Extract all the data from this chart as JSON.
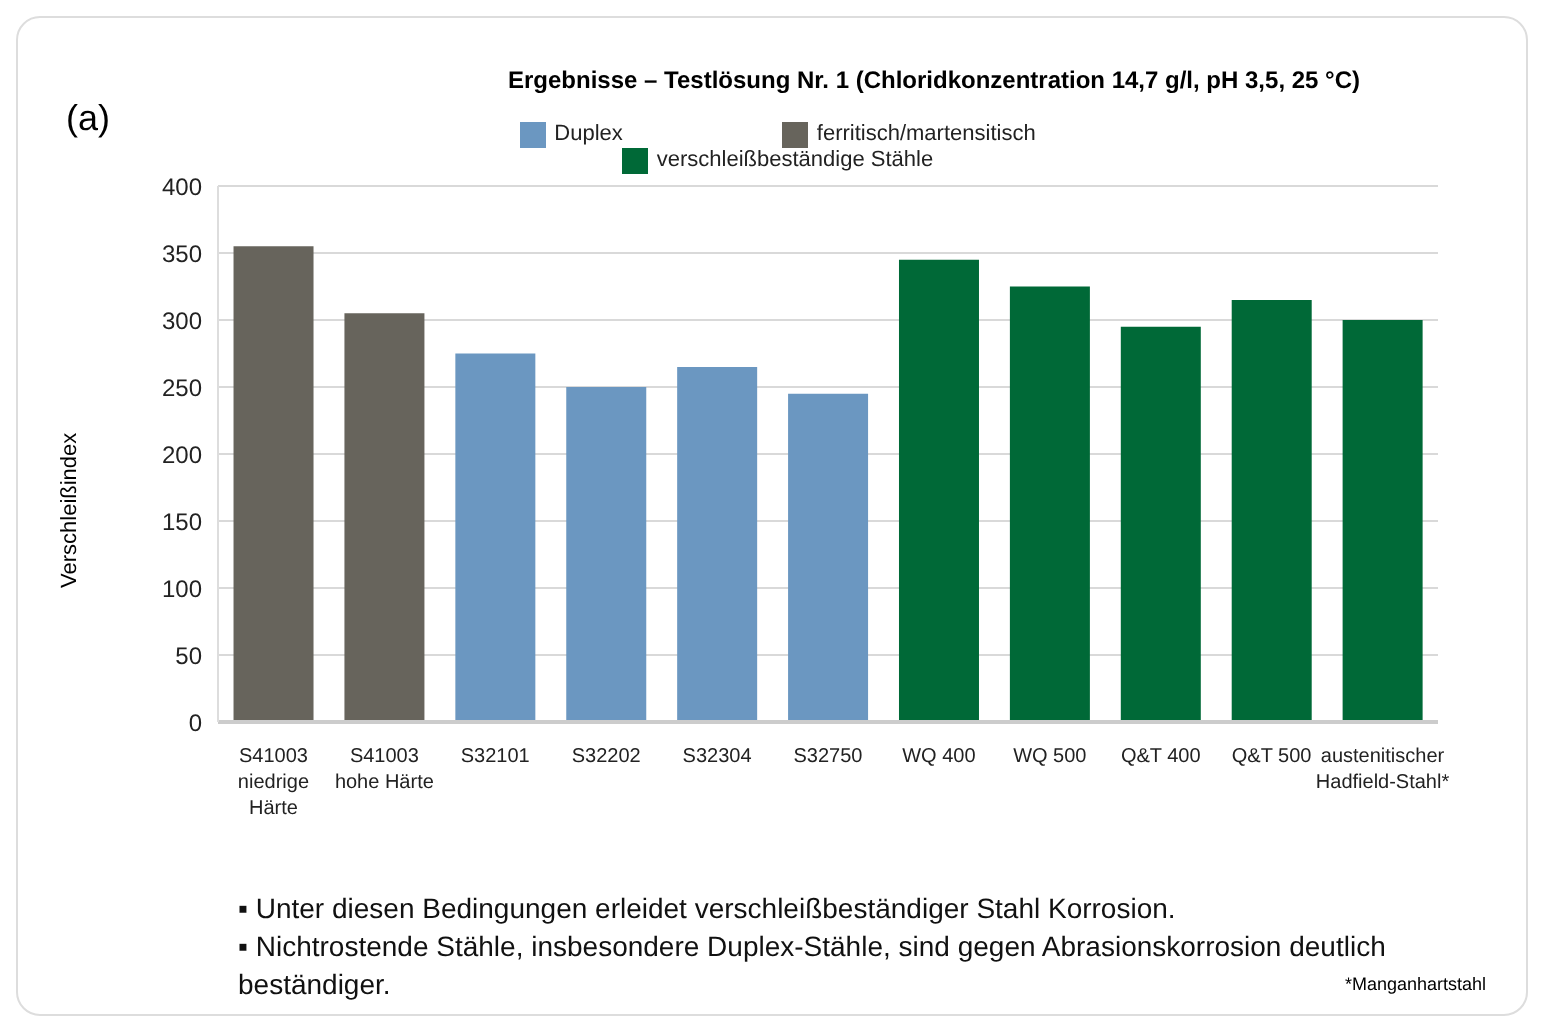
{
  "chart_data": {
    "type": "bar",
    "title": "Ergebnisse – Testlösung Nr. 1 (Chloridkonzentration 14,7 g/l, pH 3,5, 25 °C)",
    "ylabel": "Verschleißindex",
    "categories": [
      "S41003 niedrige Härte",
      "S41003 hohe Härte",
      "S32101",
      "S32202",
      "S32304",
      "S32750",
      "WQ 400",
      "WQ 500",
      "Q&T 400",
      "Q&T 500",
      "austenitischer Hadfield-Stahl*"
    ],
    "series": [
      {
        "name": "ferritisch/martensitisch",
        "color": "#67645c",
        "values": [
          355,
          305,
          null,
          null,
          null,
          null,
          null,
          null,
          null,
          null,
          null
        ]
      },
      {
        "name": "Duplex",
        "color": "#6b97c1",
        "values": [
          null,
          null,
          275,
          250,
          265,
          245,
          null,
          null,
          null,
          null,
          null
        ]
      },
      {
        "name": "verschleißbeständige Stähle",
        "color": "#006937",
        "values": [
          null,
          null,
          null,
          null,
          null,
          null,
          345,
          325,
          295,
          315,
          300
        ]
      }
    ],
    "stacked": true,
    "ylim": [
      0,
      400
    ],
    "yticks": [
      0,
      50,
      100,
      150,
      200,
      250,
      300,
      350,
      400
    ],
    "grid": "y",
    "legend": "top",
    "annotations": [
      "(a)",
      "▪ Unter diesen Bedingungen erleidet verschleißbeständiger Stahl Korrosion.",
      "▪ Nichtrostende Stähle, insbesondere Duplex-Stähle, sind gegen Abrasionskorrosion deutlich beständiger.",
      "*Manganhartstahl"
    ]
  }
}
